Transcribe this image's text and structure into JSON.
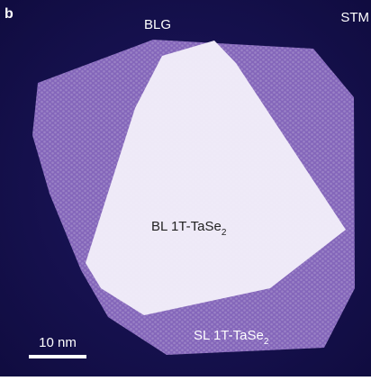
{
  "panel_label": "b",
  "labels": {
    "substrate": "BLG",
    "technique": "STM",
    "bilayer": {
      "text": "BL 1T-TaSe",
      "subscript": "2"
    },
    "single_layer": {
      "text": "SL 1T-TaSe",
      "subscript": "2"
    }
  },
  "scale_bar": {
    "label": "10 nm"
  }
}
